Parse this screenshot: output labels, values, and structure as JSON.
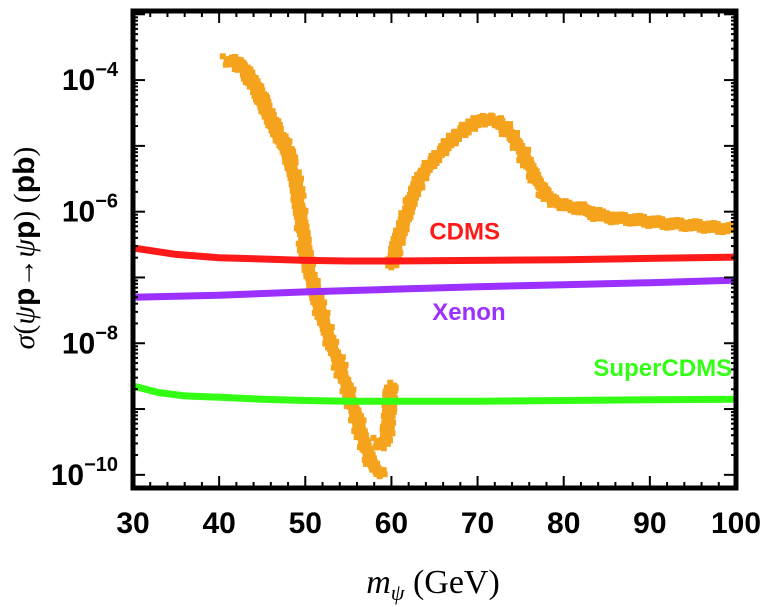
{
  "chart_data": {
    "type": "scatter",
    "xlabel": "m_ψ (GeV)",
    "ylabel": "σ(ψp→ψp) (pb)",
    "x_ticks": [
      "30",
      "40",
      "50",
      "60",
      "70",
      "80",
      "90",
      "100"
    ],
    "x_tick_values": [
      30,
      40,
      50,
      60,
      70,
      80,
      90,
      100
    ],
    "y_tick_values": [
      -4,
      -6,
      -8,
      -10
    ],
    "y_tick_labels": [
      {
        "base": "10",
        "exp": "−4"
      },
      {
        "base": "10",
        "exp": "−6"
      },
      {
        "base": "10",
        "exp": "−8"
      },
      {
        "base": "10",
        "exp": "−10"
      }
    ],
    "xlim": [
      30,
      100
    ],
    "ylim_log10": [
      -10.2,
      -2.95
    ],
    "y_scale": "log",
    "grid": false,
    "frame_ticks_dashed": true,
    "series": [
      {
        "name": "",
        "kind": "scatter-band",
        "color": "#f5a21d",
        "segments": [
          {
            "x": [
              41.0,
              42.0,
              43.0,
              44.0,
              45.0,
              46.0,
              47.0,
              48.0,
              49.0,
              50.0,
              51.0,
              52.0,
              53.0,
              54.0,
              55.0,
              56.0,
              57.0,
              58.0,
              59.0
            ],
            "y": [
              -3.7,
              -3.72,
              -3.85,
              -4.05,
              -4.3,
              -4.6,
              -4.85,
              -5.1,
              -5.6,
              -6.6,
              -7.2,
              -7.6,
              -8.0,
              -8.35,
              -8.75,
              -9.15,
              -9.6,
              -9.9,
              -10.0
            ]
          },
          {
            "x": [
              58.5,
              59.0,
              59.5,
              60.0
            ],
            "y": [
              -9.5,
              -9.55,
              -9.4,
              -8.6
            ]
          },
          {
            "x": [
              60.0,
              61.0,
              62.0,
              63.0,
              64.0,
              65.0,
              66.0,
              67.0,
              68.0,
              69.0,
              70.0,
              71.0,
              72.0,
              73.0,
              74.0,
              75.0,
              76.0,
              77.0,
              78.0,
              79.0,
              80.0,
              82.0,
              84.0,
              86.0,
              88.0,
              90.0,
              92.0,
              94.0,
              96.0,
              98.0,
              100.0
            ],
            "y": [
              -6.8,
              -6.35,
              -5.9,
              -5.6,
              -5.35,
              -5.2,
              -5.05,
              -4.9,
              -4.8,
              -4.7,
              -4.62,
              -4.6,
              -4.62,
              -4.7,
              -4.85,
              -5.05,
              -5.3,
              -5.55,
              -5.75,
              -5.85,
              -5.9,
              -5.95,
              -6.05,
              -6.1,
              -6.12,
              -6.15,
              -6.18,
              -6.2,
              -6.22,
              -6.25,
              -6.25
            ]
          }
        ]
      },
      {
        "name": "CDMS",
        "kind": "line",
        "color": "#ff1a1a",
        "x": [
          30,
          35,
          40,
          45,
          50,
          55,
          60,
          70,
          80,
          90,
          100
        ],
        "y": [
          -6.55,
          -6.65,
          -6.7,
          -6.72,
          -6.74,
          -6.75,
          -6.75,
          -6.74,
          -6.73,
          -6.71,
          -6.69
        ]
      },
      {
        "name": "Xenon",
        "kind": "line",
        "color": "#9b30ff",
        "x": [
          30,
          40,
          50,
          60,
          70,
          80,
          90,
          100
        ],
        "y": [
          -7.3,
          -7.27,
          -7.22,
          -7.18,
          -7.14,
          -7.11,
          -7.08,
          -7.04
        ]
      },
      {
        "name": "SuperCDMS",
        "kind": "line",
        "color": "#33ff14",
        "x": [
          30,
          33,
          36,
          40,
          45,
          50,
          55,
          60,
          70,
          80,
          90,
          100
        ],
        "y": [
          -8.65,
          -8.75,
          -8.8,
          -8.82,
          -8.85,
          -8.87,
          -8.88,
          -8.88,
          -8.88,
          -8.87,
          -8.86,
          -8.85
        ]
      }
    ],
    "annotations": [
      {
        "text": "CDMS",
        "color": "#ff1a1a",
        "x": 68.5,
        "y": -6.42
      },
      {
        "text": "Xenon",
        "color": "#9b30ff",
        "x": 69.0,
        "y": -7.65
      },
      {
        "text": "SuperCDMS",
        "color": "#33ff14",
        "x": 91.5,
        "y": -8.5
      }
    ]
  }
}
